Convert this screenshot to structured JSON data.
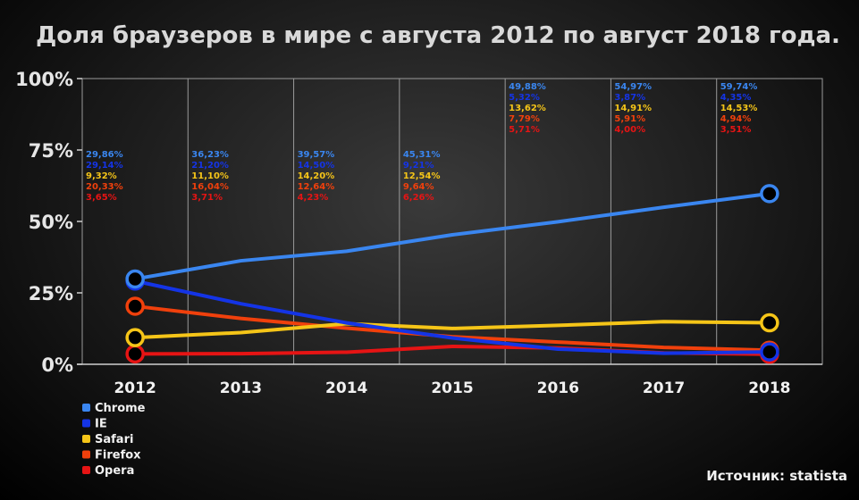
{
  "chart_data": {
    "type": "line",
    "title": "Доля браузеров в мире с августа 2012 по август 2018 года.",
    "categories": [
      "2012",
      "2013",
      "2014",
      "2015",
      "2016",
      "2017",
      "2018"
    ],
    "yticks": [
      "0%",
      "25%",
      "50%",
      "75%",
      "100%"
    ],
    "ylim": [
      0,
      100
    ],
    "grid": true,
    "legend_position": "bottom-left",
    "series": [
      {
        "name": "Chrome",
        "color": "#3a86f0",
        "values": [
          29.86,
          36.23,
          39.57,
          45.31,
          49.88,
          54.97,
          59.74
        ],
        "labels": [
          "29,86%",
          "36,23%",
          "39,57%",
          "45,31%",
          "49,88%",
          "54,97%",
          "59,74%"
        ]
      },
      {
        "name": "IE",
        "color": "#1434e6",
        "values": [
          29.14,
          21.2,
          14.5,
          9.21,
          5.32,
          3.87,
          4.35
        ],
        "labels": [
          "29,14%",
          "21,20%",
          "14,50%",
          "9,21%",
          "5,32%",
          "3,87%",
          "4,35%"
        ]
      },
      {
        "name": "Safari",
        "color": "#f5c518",
        "values": [
          9.32,
          11.1,
          14.2,
          12.54,
          13.62,
          14.91,
          14.53
        ],
        "labels": [
          "9,32%",
          "11,10%",
          "14,20%",
          "12,54%",
          "13,62%",
          "14,91%",
          "14,53%"
        ]
      },
      {
        "name": "Firefox",
        "color": "#f0400c",
        "values": [
          20.33,
          16.04,
          12.64,
          9.64,
          7.79,
          5.91,
          4.94
        ],
        "labels": [
          "20,33%",
          "16,04%",
          "12,64%",
          "9,64%",
          "7,79%",
          "5,91%",
          "4,94%"
        ]
      },
      {
        "name": "Opera",
        "color": "#e61414",
        "values": [
          3.65,
          3.71,
          4.23,
          6.26,
          5.71,
          4.0,
          3.51
        ],
        "labels": [
          "3,65%",
          "3,71%",
          "4,23%",
          "6,26%",
          "5,71%",
          "4,00%",
          "3,51%"
        ]
      }
    ]
  },
  "source": "Источник: statista"
}
